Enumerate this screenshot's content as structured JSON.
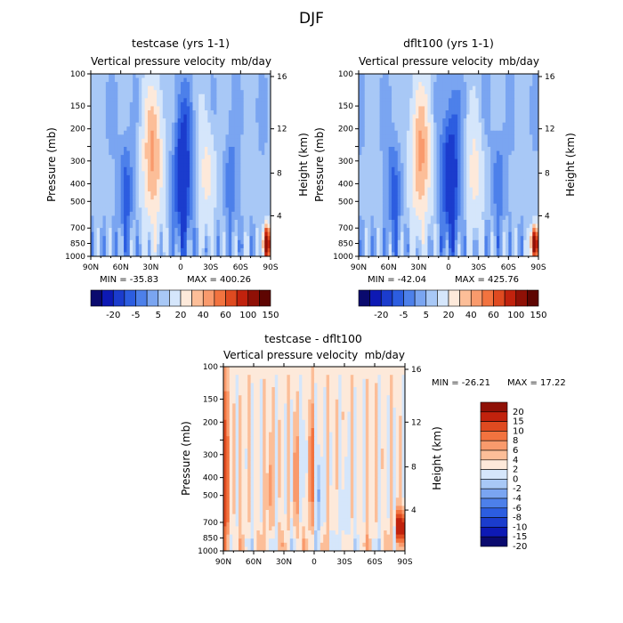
{
  "figure": {
    "title": "DJF",
    "variable_label": "Vertical pressure velocity",
    "units": "mb/day"
  },
  "colors": {
    "case_scale": [
      "#0a0a6e",
      "#0d19b4",
      "#1b3ccd",
      "#2c5de0",
      "#4d80ea",
      "#7aa5f1",
      "#a8c8f6",
      "#d5e6fb",
      "#fde9da",
      "#fcbe98",
      "#f99a6c",
      "#f2733f",
      "#df4a20",
      "#c1220d",
      "#8f1006",
      "#5e0502"
    ],
    "diff_scale": [
      "#0a0a6e",
      "#0d19b4",
      "#1b3ccd",
      "#2c5de0",
      "#4d80ea",
      "#7aa5f1",
      "#a8c8f6",
      "#d5e6fb",
      "#fde9da",
      "#fcbe98",
      "#f99a6c",
      "#f2733f",
      "#df4a20",
      "#c1220d",
      "#8f1006"
    ]
  },
  "chart_data": [
    {
      "type": "heatmap",
      "name": "testcase",
      "title": "testcase (yrs 1-1)",
      "subtitle_left": "Vertical pressure velocity",
      "subtitle_right": "mb/day",
      "xlabel": "",
      "ylabel": "Pressure (mb)",
      "y2label": "Height (km)",
      "x_ticks": [
        "90N",
        "60N",
        "30N",
        "0",
        "30S",
        "60S",
        "90S"
      ],
      "x_range": [
        90,
        -90
      ],
      "y_ticks": [
        100,
        150,
        200,
        250,
        300,
        400,
        500,
        700,
        850,
        1000
      ],
      "y_tick_labels": [
        "100",
        "150",
        "200",
        "",
        "300",
        "400",
        "500",
        "700",
        "850",
        "1000"
      ],
      "y_range": [
        100,
        1000
      ],
      "y2_ticks": [
        16,
        12,
        8,
        4
      ],
      "min": -35.83,
      "max": 400.26,
      "min_label": "MIN = -35.83",
      "max_label": "MAX = 400.26",
      "contour_levels": [
        -30,
        -20,
        -10,
        -5,
        0,
        5,
        10,
        20,
        30,
        40,
        50,
        60,
        80,
        100,
        150
      ],
      "colorbar_labels": [
        "-20",
        "-5",
        "5",
        "20",
        "40",
        "60",
        "100",
        "150"
      ]
    },
    {
      "type": "heatmap",
      "name": "dflt100",
      "title": "dflt100 (yrs 1-1)",
      "subtitle_left": "Vertical pressure velocity",
      "subtitle_right": "mb/day",
      "xlabel": "",
      "ylabel": "Pressure (mb)",
      "y2label": "Height (km)",
      "x_ticks": [
        "90N",
        "60N",
        "30N",
        "0",
        "30S",
        "60S",
        "90S"
      ],
      "x_range": [
        90,
        -90
      ],
      "y_ticks": [
        100,
        150,
        200,
        250,
        300,
        400,
        500,
        700,
        850,
        1000
      ],
      "y_tick_labels": [
        "100",
        "150",
        "200",
        "",
        "300",
        "400",
        "500",
        "700",
        "850",
        "1000"
      ],
      "y_range": [
        100,
        1000
      ],
      "y2_ticks": [
        16,
        12,
        8,
        4
      ],
      "min": -42.04,
      "max": 425.76,
      "min_label": "MIN = -42.04",
      "max_label": "MAX = 425.76",
      "contour_levels": [
        -30,
        -20,
        -10,
        -5,
        0,
        5,
        10,
        20,
        30,
        40,
        50,
        60,
        80,
        100,
        150
      ],
      "colorbar_labels": [
        "-20",
        "-5",
        "5",
        "20",
        "40",
        "60",
        "100",
        "150"
      ]
    },
    {
      "type": "heatmap",
      "name": "difference",
      "title": "testcase - dflt100",
      "subtitle_left": "Vertical pressure velocity",
      "subtitle_right": "mb/day",
      "xlabel": "",
      "ylabel": "Pressure (mb)",
      "y2label": "Height (km)",
      "x_ticks": [
        "90N",
        "60N",
        "30N",
        "0",
        "30S",
        "60S",
        "90S"
      ],
      "x_range": [
        90,
        -90
      ],
      "y_ticks": [
        100,
        150,
        200,
        250,
        300,
        400,
        500,
        700,
        850,
        1000
      ],
      "y_tick_labels": [
        "100",
        "150",
        "200",
        "",
        "300",
        "400",
        "500",
        "700",
        "850",
        "1000"
      ],
      "y_range": [
        100,
        1000
      ],
      "y2_ticks": [
        16,
        12,
        8,
        4
      ],
      "min": -26.21,
      "max": 17.22,
      "min_label": "MIN = -26.21",
      "max_label": "MAX =  17.22",
      "contour_levels": [
        -20,
        -15,
        -10,
        -8,
        -6,
        -4,
        -2,
        0,
        2,
        4,
        6,
        8,
        10,
        15,
        20
      ],
      "colorbar_labels": [
        "20",
        "15",
        "10",
        "8",
        "6",
        "4",
        "2",
        "0",
        "-2",
        "-4",
        "-6",
        "-8",
        "-10",
        "-15",
        "-20"
      ]
    }
  ]
}
